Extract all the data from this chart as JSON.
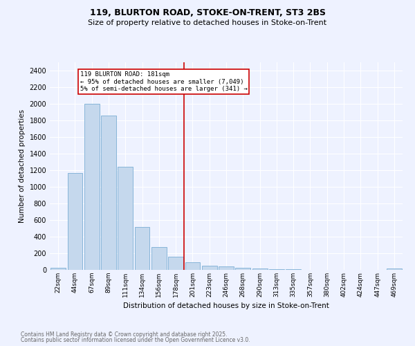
{
  "title": "119, BLURTON ROAD, STOKE-ON-TRENT, ST3 2BS",
  "subtitle": "Size of property relative to detached houses in Stoke-on-Trent",
  "xlabel": "Distribution of detached houses by size in Stoke-on-Trent",
  "ylabel": "Number of detached properties",
  "categories": [
    "22sqm",
    "44sqm",
    "67sqm",
    "89sqm",
    "111sqm",
    "134sqm",
    "156sqm",
    "178sqm",
    "201sqm",
    "223sqm",
    "246sqm",
    "268sqm",
    "290sqm",
    "313sqm",
    "335sqm",
    "357sqm",
    "380sqm",
    "402sqm",
    "424sqm",
    "447sqm",
    "469sqm"
  ],
  "values": [
    25,
    1170,
    2000,
    1860,
    1245,
    520,
    278,
    155,
    95,
    48,
    45,
    22,
    18,
    10,
    5,
    4,
    2,
    2,
    1,
    1,
    18
  ],
  "bar_color": "#c5d8ed",
  "bar_edge_color": "#7aaed4",
  "bg_color": "#eef2ff",
  "grid_color": "#ffffff",
  "annotation_label": "119 BLURTON ROAD: 181sqm",
  "annotation_line1": "← 95% of detached houses are smaller (7,049)",
  "annotation_line2": "5% of semi-detached houses are larger (341) →",
  "annotation_box_color": "#ffffff",
  "annotation_box_edge": "#cc0000",
  "marker_line_color": "#cc0000",
  "footer_line1": "Contains HM Land Registry data © Crown copyright and database right 2025.",
  "footer_line2": "Contains public sector information licensed under the Open Government Licence v3.0.",
  "ylim": [
    0,
    2500
  ],
  "yticks": [
    0,
    200,
    400,
    600,
    800,
    1000,
    1200,
    1400,
    1600,
    1800,
    2000,
    2200,
    2400
  ]
}
